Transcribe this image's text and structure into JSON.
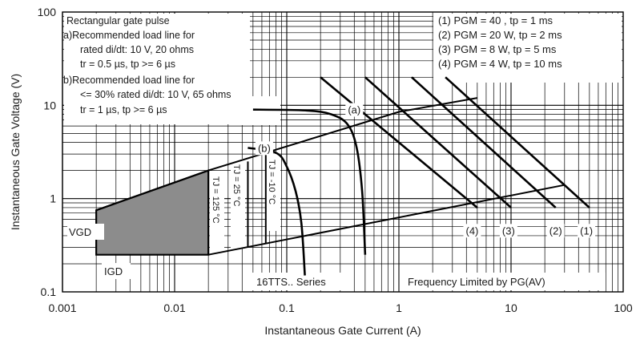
{
  "chart_data": {
    "type": "line",
    "xlabel": "Instantaneous Gate Current (A)",
    "ylabel": "Instantaneous Gate Voltage (V)",
    "xscale": "log",
    "yscale": "log",
    "xlim": [
      0.001,
      100
    ],
    "ylim": [
      0.1,
      100
    ],
    "grid": true,
    "x_ticks": [
      "0.001",
      "0.01",
      "0.1",
      "1",
      "10",
      "100"
    ],
    "y_ticks": [
      "0.1",
      "1",
      "10",
      "100"
    ],
    "notes": [
      "Rectangular gate pulse",
      "a)Recommended load line for",
      "rated di/dt: 10 V, 20 ohms",
      "tr = 0.5 µs, tp >= 6 µs",
      "b)Recommended load line for",
      "<= 30% rated di/dt: 10 V, 65 ohms",
      "tr = 1 µs, tp >= 6 µs"
    ],
    "legend": [
      "(1) PGM = 40 , tp = 1 ms",
      "(2) PGM = 20 W, tp = 2 ms",
      "(3) PGM = 8 W, tp = 5 ms",
      "(4) PGM = 4 W, tp = 10 ms"
    ],
    "footer_left": "16TTS.. Series",
    "footer_right": "Frequency Limited by PG(AV)",
    "region": {
      "vgd_label": "VGD",
      "igd_label": "IGD",
      "VGD": 0.25,
      "IGD": 0.002,
      "upper_left_v": 0.75,
      "upper_right": [
        0.02,
        2.0
      ],
      "right_x": 0.02,
      "tj_125_label": "TJ = 125 °C"
    },
    "temperature_lines": [
      {
        "label": "TJ = 25 °C",
        "x": 0.045,
        "y_range": [
          0.3,
          2.5
        ]
      },
      {
        "label": "TJ = -10 °C",
        "x": 0.065,
        "y_range": [
          0.33,
          3.3
        ]
      }
    ],
    "lower_boundary": [
      [
        0.02,
        0.25
      ],
      [
        30,
        1.4
      ]
    ],
    "upper_boundary": [
      [
        0.002,
        0.75
      ],
      [
        0.02,
        2.0
      ],
      [
        1,
        8.5
      ],
      [
        5,
        12
      ]
    ],
    "series": [
      {
        "name": "(a)",
        "points": [
          [
            0.05,
            9
          ],
          [
            0.15,
            8.8
          ],
          [
            0.25,
            8.0
          ],
          [
            0.35,
            6.2
          ],
          [
            0.42,
            3.5
          ],
          [
            0.47,
            1.2
          ],
          [
            0.5,
            0.25
          ]
        ]
      },
      {
        "name": "(b)",
        "points": [
          [
            0.045,
            3.5
          ],
          [
            0.08,
            3.1
          ],
          [
            0.1,
            2.2
          ],
          [
            0.12,
            1.2
          ],
          [
            0.135,
            0.55
          ],
          [
            0.145,
            0.15
          ]
        ]
      },
      {
        "name": "(1)",
        "points": [
          [
            2.6,
            20
          ],
          [
            50,
            0.8
          ]
        ]
      },
      {
        "name": "(2)",
        "points": [
          [
            1.3,
            20
          ],
          [
            25,
            0.8
          ]
        ]
      },
      {
        "name": "(3)",
        "points": [
          [
            0.5,
            20
          ],
          [
            10,
            0.8
          ]
        ]
      },
      {
        "name": "(4)",
        "points": [
          [
            0.2,
            20
          ],
          [
            5,
            0.8
          ]
        ]
      }
    ],
    "curve_labels": [
      {
        "text": "(a)",
        "x": 0.4,
        "y": 8.5
      },
      {
        "text": "(b)",
        "x": 0.063,
        "y": 3.3
      },
      {
        "text": "(4)",
        "x": 4.5,
        "y": 0.43
      },
      {
        "text": "(3)",
        "x": 9.5,
        "y": 0.43
      },
      {
        "text": "(2)",
        "x": 25,
        "y": 0.43
      },
      {
        "text": "(1)",
        "x": 47,
        "y": 0.43
      }
    ]
  }
}
